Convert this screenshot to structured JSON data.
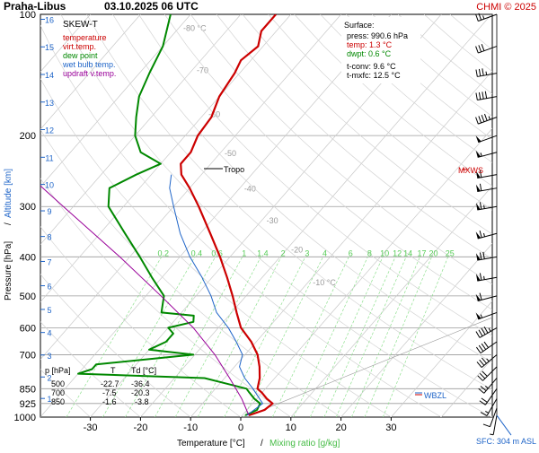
{
  "header": {
    "station": "Praha-Libus",
    "datetime": "03.10.2025 06 UTC",
    "copyright": "CHMI © 2025"
  },
  "legend": {
    "title": "SKEW-T",
    "items": [
      {
        "label": "temperature",
        "color": "#cc0000"
      },
      {
        "label": "virt.temp.",
        "color": "#cc0000"
      },
      {
        "label": "dew point",
        "color": "#008800"
      },
      {
        "label": "wet bulb temp.",
        "color": "#1e64c8"
      },
      {
        "label": "updraft v.temp.",
        "color": "#990099"
      }
    ]
  },
  "surface_box": {
    "title": "Surface:",
    "press": "press: 990.6 hPa",
    "temp": "temp: 1.3 °C",
    "dwpt": "dwpt: 0.6 °C",
    "tconv": "t-conv: 9.6 °C",
    "tmxfc": "t-mxfc: 12.5 °C"
  },
  "level_table": {
    "headers": [
      "p [hPa]",
      "T",
      "Td [°C]"
    ],
    "rows": [
      [
        "500",
        "-22.7",
        "-36.4"
      ],
      [
        "700",
        "-7.5",
        "-20.3"
      ],
      [
        "850",
        "-1.6",
        "-3.8"
      ]
    ]
  },
  "annotations": {
    "tropo": "Tropo",
    "mxws": "MXWS",
    "wbzl": "WBZL",
    "sfc": "SFC: 304 m ASL"
  },
  "axes": {
    "ylabel_pressure": "Pressure [hPa]",
    "ylabel_sep": "/",
    "ylabel_altitude": "Altitude [km]",
    "xlabel_temp": "Temperature [°C]",
    "xlabel_sep": "/",
    "xlabel_mix": "Mixing ratio [g/kg]"
  },
  "chart_data": {
    "type": "line",
    "title": "SKEW-T",
    "pressure_levels_hPa": [
      100,
      200,
      300,
      400,
      500,
      600,
      700,
      850,
      925,
      1000
    ],
    "pressure_tick_labels": [
      "100",
      "200",
      "300",
      "400",
      "500",
      "600",
      "700",
      "850",
      "925",
      "1000"
    ],
    "altitude_ticks_km": [
      "16",
      "15",
      "14",
      "13",
      "12",
      "11",
      "10",
      "9",
      "8",
      "7",
      "6",
      "5",
      "4",
      "3",
      "2",
      "1"
    ],
    "temperature_ticks_C": [
      "-30",
      "-20",
      "-10",
      "0",
      "10",
      "20",
      "30"
    ],
    "isotherm_labels": [
      "-80 °C",
      "-70",
      "-60",
      "-50",
      "-40",
      "-30",
      "-20",
      "-10 °C"
    ],
    "mixing_ratio_labels": [
      "0.2",
      "0.4",
      "0.6",
      "1",
      "1.4",
      "2",
      "3",
      "4",
      "6",
      "8",
      "10",
      "12",
      "14",
      "17",
      "20",
      "25"
    ],
    "ylim_hPa": [
      100,
      1000
    ],
    "xlim_C": [
      -40,
      50
    ],
    "series": [
      {
        "name": "temperature",
        "color": "#cc0000",
        "points": [
          [
            990,
            1.3
          ],
          [
            960,
            3.5
          ],
          [
            925,
            4.0
          ],
          [
            900,
            2.0
          ],
          [
            870,
            0.0
          ],
          [
            850,
            -1.6
          ],
          [
            800,
            -3.0
          ],
          [
            750,
            -5.0
          ],
          [
            700,
            -7.5
          ],
          [
            650,
            -11.0
          ],
          [
            600,
            -15.5
          ],
          [
            550,
            -19.0
          ],
          [
            500,
            -22.7
          ],
          [
            450,
            -27.0
          ],
          [
            400,
            -32.0
          ],
          [
            350,
            -38.0
          ],
          [
            300,
            -45.0
          ],
          [
            270,
            -50.0
          ],
          [
            250,
            -54.0
          ],
          [
            235,
            -56.0
          ],
          [
            220,
            -56.0
          ],
          [
            200,
            -57.5
          ],
          [
            180,
            -58.0
          ],
          [
            160,
            -60.0
          ],
          [
            140,
            -61.0
          ],
          [
            130,
            -62.0
          ],
          [
            120,
            -61.0
          ],
          [
            110,
            -63.0
          ],
          [
            100,
            -63.0
          ]
        ]
      },
      {
        "name": "dew point",
        "color": "#008800",
        "points": [
          [
            990,
            0.6
          ],
          [
            960,
            2.0
          ],
          [
            925,
            1.5
          ],
          [
            900,
            -0.5
          ],
          [
            870,
            -2.5
          ],
          [
            850,
            -3.8
          ],
          [
            800,
            -14.0
          ],
          [
            780,
            -40.0
          ],
          [
            760,
            -38.0
          ],
          [
            740,
            -38.0
          ],
          [
            710,
            -25.0
          ],
          [
            700,
            -20.3
          ],
          [
            680,
            -30.0
          ],
          [
            650,
            -28.0
          ],
          [
            620,
            -28.0
          ],
          [
            600,
            -30.0
          ],
          [
            580,
            -26.0
          ],
          [
            560,
            -27.0
          ],
          [
            550,
            -34.0
          ],
          [
            500,
            -36.4
          ],
          [
            450,
            -42.0
          ],
          [
            400,
            -48.0
          ],
          [
            350,
            -55.0
          ],
          [
            300,
            -63.0
          ],
          [
            270,
            -66.0
          ],
          [
            250,
            -63.0
          ],
          [
            235,
            -60.0
          ],
          [
            220,
            -66.0
          ],
          [
            200,
            -70.0
          ],
          [
            180,
            -73.0
          ],
          [
            160,
            -76.0
          ],
          [
            140,
            -78.0
          ],
          [
            120,
            -80.0
          ],
          [
            100,
            -84.0
          ]
        ]
      },
      {
        "name": "wet bulb temp.",
        "color": "#1e64c8",
        "points": [
          [
            990,
            0.9
          ],
          [
            925,
            2.0
          ],
          [
            850,
            -2.5
          ],
          [
            800,
            -6.0
          ],
          [
            750,
            -9.0
          ],
          [
            700,
            -10.5
          ],
          [
            650,
            -14.0
          ],
          [
            600,
            -18.0
          ],
          [
            550,
            -23.0
          ],
          [
            500,
            -27.0
          ],
          [
            450,
            -32.0
          ],
          [
            400,
            -38.0
          ],
          [
            350,
            -44.0
          ],
          [
            300,
            -50.0
          ],
          [
            270,
            -54.0
          ],
          [
            250,
            -56.0
          ]
        ]
      },
      {
        "name": "updraft v.temp.",
        "color": "#990099",
        "points": [
          [
            990,
            1.3
          ],
          [
            900,
            -3.0
          ],
          [
            800,
            -9.0
          ],
          [
            700,
            -16.0
          ],
          [
            600,
            -25.0
          ],
          [
            500,
            -37.0
          ],
          [
            400,
            -52.0
          ],
          [
            300,
            -72.0
          ],
          [
            200,
            -100.0
          ],
          [
            150,
            -120.0
          ],
          [
            100,
            -140.0
          ]
        ]
      }
    ],
    "wind_barbs": {
      "pressure_hPa": [
        100,
        120,
        140,
        160,
        180,
        200,
        220,
        250,
        270,
        300,
        350,
        400,
        450,
        500,
        550,
        600,
        650,
        700,
        750,
        800,
        850,
        900,
        950,
        990
      ],
      "direction_deg": [
        250,
        250,
        260,
        260,
        250,
        250,
        255,
        260,
        260,
        260,
        255,
        260,
        260,
        255,
        250,
        240,
        235,
        230,
        225,
        220,
        215,
        210,
        200,
        190
      ],
      "speed_kt": [
        25,
        30,
        35,
        40,
        45,
        50,
        55,
        60,
        60,
        65,
        65,
        70,
        65,
        60,
        55,
        45,
        40,
        35,
        30,
        25,
        20,
        15,
        10,
        5
      ]
    }
  }
}
